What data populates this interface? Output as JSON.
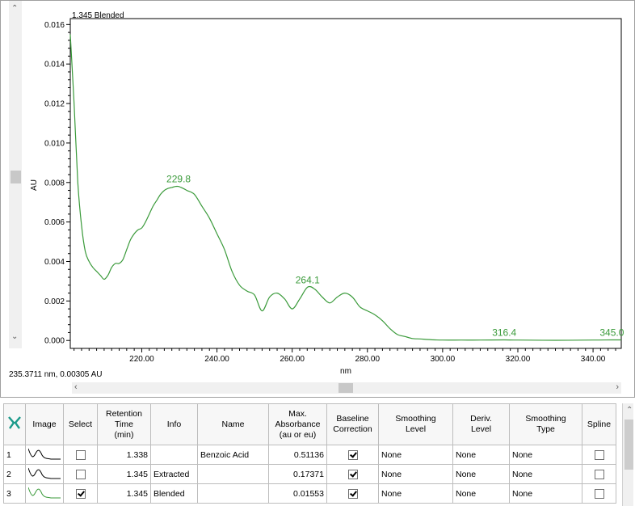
{
  "chart_data": {
    "type": "line",
    "title": "1.345 Blended",
    "xlabel": "nm",
    "ylabel": "AU",
    "xlim": [
      201,
      347.5
    ],
    "ylim": [
      -0.0004,
      0.0163
    ],
    "x_ticks": [
      220,
      240,
      260,
      280,
      300,
      320,
      340
    ],
    "x_tick_labels": [
      "220.00",
      "240.00",
      "260.00",
      "280.00",
      "300.00",
      "320.00",
      "340.00"
    ],
    "y_ticks": [
      0,
      0.002,
      0.004,
      0.006,
      0.008,
      0.01,
      0.012,
      0.014,
      0.016
    ],
    "y_tick_labels": [
      "0.000",
      "0.002",
      "0.004",
      "0.006",
      "0.008",
      "0.010",
      "0.012",
      "0.014",
      "0.016"
    ],
    "grid": false,
    "line_color": "#3a9a3a",
    "series": [
      {
        "x": [
          201,
          202,
          203,
          204,
          205,
          206,
          207,
          208,
          209,
          210,
          211,
          212,
          213,
          214,
          215,
          216,
          217,
          218,
          219,
          220,
          221,
          222,
          223,
          224,
          225,
          226,
          227,
          228,
          229,
          229.8,
          231,
          232,
          234,
          236,
          238,
          240,
          242,
          244,
          246,
          248,
          250,
          252,
          254,
          256,
          258,
          260,
          262,
          264.1,
          266,
          268,
          270,
          272,
          274,
          276,
          278,
          280,
          282,
          284,
          286,
          288,
          290,
          292,
          294,
          296,
          298,
          300,
          305,
          310,
          316.4,
          320,
          330,
          340,
          345,
          347.5
        ],
        "y": [
          0.0155,
          0.012,
          0.008,
          0.0058,
          0.0045,
          0.004,
          0.0037,
          0.0035,
          0.0033,
          0.0031,
          0.0033,
          0.0037,
          0.0039,
          0.0039,
          0.0041,
          0.0046,
          0.0051,
          0.0054,
          0.0056,
          0.0057,
          0.006,
          0.0064,
          0.0068,
          0.0071,
          0.0074,
          0.0076,
          0.0077,
          0.00775,
          0.0078,
          0.0078,
          0.0077,
          0.0076,
          0.0074,
          0.0068,
          0.0062,
          0.0054,
          0.0046,
          0.0035,
          0.0028,
          0.0025,
          0.0023,
          0.0015,
          0.0022,
          0.0024,
          0.0021,
          0.0016,
          0.0021,
          0.0027,
          0.0026,
          0.0022,
          0.0019,
          0.0022,
          0.0024,
          0.0022,
          0.0017,
          0.0015,
          0.0013,
          0.001,
          0.0006,
          0.0003,
          0.0002,
          0.0001,
          8e-05,
          5e-05,
          3e-05,
          2e-05,
          2e-05,
          2e-05,
          3e-05,
          2e-05,
          1e-05,
          2e-05,
          3e-05,
          3e-05
        ]
      }
    ],
    "annotations": [
      {
        "x": 229.8,
        "y": 0.0078,
        "text": "229.8"
      },
      {
        "x": 264.1,
        "y": 0.0027,
        "text": "264.1"
      },
      {
        "x": 316.4,
        "y": 3e-05,
        "text": "316.4"
      },
      {
        "x": 345.0,
        "y": 3e-05,
        "text": "345.0"
      }
    ]
  },
  "readout": "235.3711 nm, 0.00305 AU",
  "table": {
    "headers": [
      "",
      "Image",
      "Select",
      "Retention\nTime\n(min)",
      "Info",
      "Name",
      "Max.\nAbsorbance\n(au or eu)",
      "Baseline\nCorrection",
      "Smoothing\nLevel",
      "Deriv.\nLevel",
      "Smoothing\nType",
      "Spline"
    ],
    "rows": [
      {
        "num": "1",
        "select": false,
        "rt": "1.338",
        "info": "",
        "name": "Benzoic Acid",
        "maxabs": "0.51136",
        "baseline": true,
        "smooth_level": "None",
        "deriv": "None",
        "smooth_type": "None",
        "spline": false
      },
      {
        "num": "2",
        "select": false,
        "rt": "1.345",
        "info": "Extracted",
        "name": "",
        "maxabs": "0.17371",
        "baseline": true,
        "smooth_level": "None",
        "deriv": "None",
        "smooth_type": "None",
        "spline": false
      },
      {
        "num": "3",
        "select": true,
        "rt": "1.345",
        "info": "Blended",
        "name": "",
        "maxabs": "0.01553",
        "baseline": true,
        "smooth_level": "None",
        "deriv": "None",
        "smooth_type": "None",
        "spline": false
      }
    ]
  }
}
